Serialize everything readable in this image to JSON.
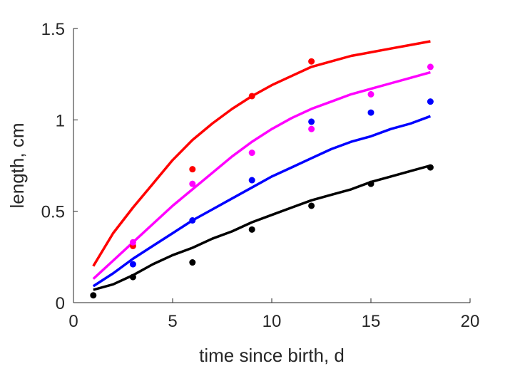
{
  "chart_data": {
    "type": "scatter",
    "title": "",
    "xlabel": "time since birth, d",
    "ylabel": "length, cm",
    "xlim": [
      0,
      20
    ],
    "ylim": [
      0,
      1.5
    ],
    "xticks": [
      0,
      5,
      10,
      15,
      20
    ],
    "xtick_labels": [
      "0",
      "5",
      "10",
      "15",
      "20"
    ],
    "yticks": [
      0,
      0.5,
      1,
      1.5
    ],
    "ytick_labels": [
      "0",
      "0.5",
      "1",
      "1.5"
    ],
    "grid": false,
    "legend": "none",
    "series": [
      {
        "color": "#ff0000",
        "points": {
          "x": [
            3,
            6,
            9,
            12
          ],
          "y": [
            0.31,
            0.73,
            1.13,
            1.32
          ]
        },
        "curve": {
          "x": [
            1,
            2,
            3,
            4,
            5,
            6,
            7,
            8,
            9,
            10,
            11,
            12,
            13,
            14,
            15,
            16,
            17,
            18
          ],
          "y": [
            0.2,
            0.38,
            0.52,
            0.65,
            0.78,
            0.89,
            0.98,
            1.06,
            1.13,
            1.19,
            1.24,
            1.29,
            1.32,
            1.35,
            1.37,
            1.39,
            1.41,
            1.43
          ]
        }
      },
      {
        "color": "#ff00ff",
        "points": {
          "x": [
            3,
            6,
            9,
            12,
            15,
            18
          ],
          "y": [
            0.33,
            0.65,
            0.82,
            0.95,
            1.14,
            1.29
          ]
        },
        "curve": {
          "x": [
            1,
            2,
            3,
            4,
            5,
            6,
            7,
            8,
            9,
            10,
            11,
            12,
            13,
            14,
            15,
            16,
            17,
            18
          ],
          "y": [
            0.13,
            0.23,
            0.33,
            0.43,
            0.53,
            0.62,
            0.71,
            0.8,
            0.88,
            0.95,
            1.01,
            1.06,
            1.1,
            1.14,
            1.17,
            1.2,
            1.23,
            1.26
          ]
        }
      },
      {
        "color": "#0000ff",
        "points": {
          "x": [
            3,
            6,
            9,
            12,
            15,
            18
          ],
          "y": [
            0.21,
            0.45,
            0.67,
            0.99,
            1.04,
            1.1
          ]
        },
        "curve": {
          "x": [
            1,
            2,
            3,
            4,
            5,
            6,
            7,
            8,
            9,
            10,
            11,
            12,
            13,
            14,
            15,
            16,
            17,
            18
          ],
          "y": [
            0.09,
            0.16,
            0.24,
            0.31,
            0.38,
            0.45,
            0.51,
            0.57,
            0.63,
            0.69,
            0.74,
            0.79,
            0.84,
            0.88,
            0.91,
            0.95,
            0.98,
            1.02
          ]
        }
      },
      {
        "color": "#000000",
        "points": {
          "x": [
            1,
            3,
            6,
            9,
            12,
            15,
            18
          ],
          "y": [
            0.04,
            0.14,
            0.22,
            0.4,
            0.53,
            0.65,
            0.74
          ]
        },
        "curve": {
          "x": [
            1,
            2,
            3,
            4,
            5,
            6,
            7,
            8,
            9,
            10,
            11,
            12,
            13,
            14,
            15,
            16,
            17,
            18
          ],
          "y": [
            0.07,
            0.1,
            0.15,
            0.21,
            0.26,
            0.3,
            0.35,
            0.39,
            0.44,
            0.48,
            0.52,
            0.56,
            0.59,
            0.62,
            0.66,
            0.69,
            0.72,
            0.75
          ]
        }
      }
    ]
  }
}
